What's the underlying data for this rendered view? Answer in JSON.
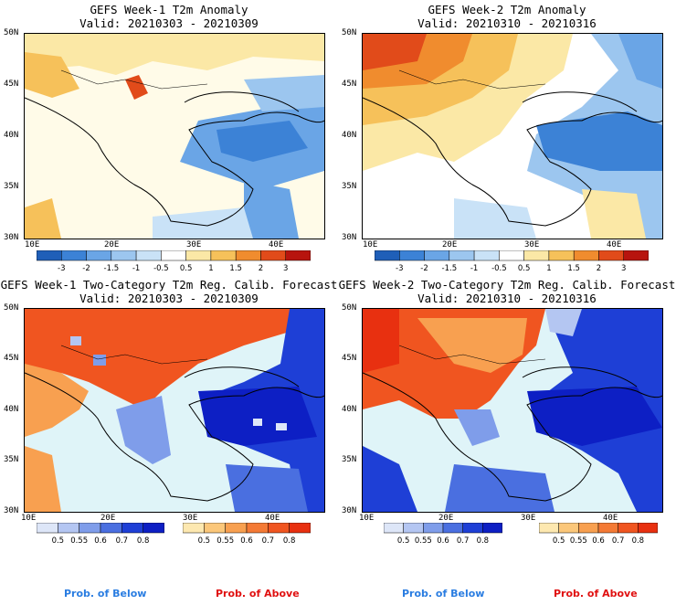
{
  "panels": [
    {
      "title": "GEFS Week-1 T2m Anomaly",
      "valid": "Valid: 20210303 - 20210309",
      "kind": "anomaly"
    },
    {
      "title": "GEFS Week-2 T2m Anomaly",
      "valid": "Valid: 20210310 - 20210316",
      "kind": "anomaly"
    },
    {
      "title": "GEFS Week-1 Two-Category T2m Reg. Calib. Forecast",
      "valid": "Valid: 20210303 - 20210309",
      "kind": "prob"
    },
    {
      "title": "GEFS Week-2 Two-Category T2m Reg. Calib. Forecast",
      "valid": "Valid: 20210310 - 20210316",
      "kind": "prob"
    }
  ],
  "axes": {
    "lat_labels": [
      "50N",
      "45N",
      "40N",
      "35N",
      "30N"
    ],
    "lon_labels": [
      "10E",
      "20E",
      "30E",
      "40E"
    ]
  },
  "anomaly_colorbar": {
    "labels": [
      "-3",
      "-2",
      "-1.5",
      "-1",
      "-0.5",
      "0.5",
      "1",
      "1.5",
      "2",
      "3"
    ],
    "colors": [
      "#1f5fb8",
      "#3c82d6",
      "#6aa5e6",
      "#9cc6ef",
      "#c9e2f7",
      "#ffffff",
      "#fbe8a6",
      "#f6c15a",
      "#f08c2e",
      "#e14b1a",
      "#b7140e"
    ]
  },
  "prob_below_colorbar": {
    "labels": [
      "0.5",
      "0.55",
      "0.6",
      "0.7",
      "0.8"
    ],
    "colors": [
      "#dde6f8",
      "#b4c6f2",
      "#7f9dea",
      "#4a6fe0",
      "#1e3fd6",
      "#0d1fc4"
    ]
  },
  "prob_above_colorbar": {
    "labels": [
      "0.5",
      "0.55",
      "0.6",
      "0.7",
      "0.8"
    ],
    "colors": [
      "#fde8b0",
      "#fbc77a",
      "#f8a050",
      "#f47a35",
      "#f05520",
      "#e83010"
    ]
  },
  "legend": {
    "below": "Prob. of Below",
    "above": "Prob. of Above",
    "below_color": "#2a7de1",
    "above_color": "#e01010"
  }
}
